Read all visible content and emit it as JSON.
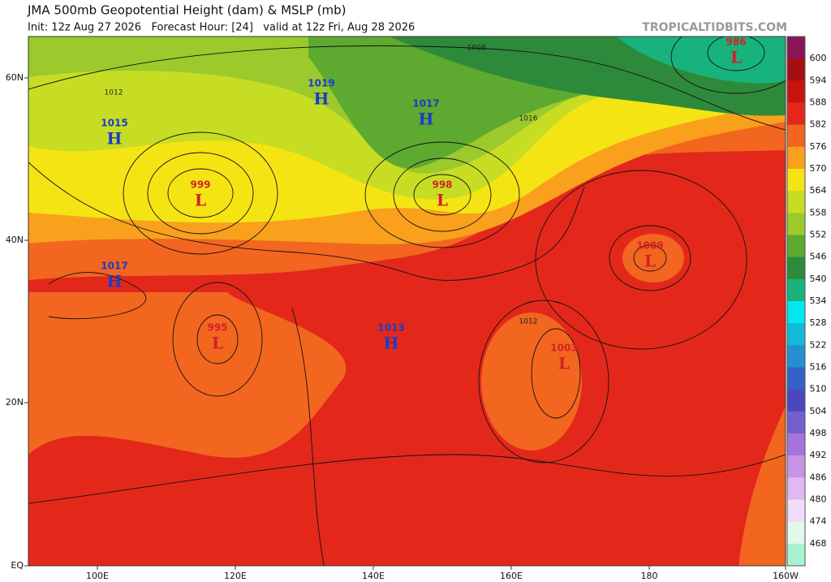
{
  "header": {
    "title": "JMA 500mb Geopotential Height (dam) & MSLP (mb)",
    "subtitle": "Init: 12z Aug 27 2026   Forecast Hour: [24]   valid at 12z Fri, Aug 28 2026",
    "source": "TROPICALTIDBITS.COM"
  },
  "map": {
    "lat_labels": [
      "60N",
      "40N",
      "20N",
      "EQ"
    ],
    "lon_labels": [
      "100E",
      "120E",
      "140E",
      "160E",
      "180",
      "160W"
    ],
    "pressure_centers": [
      {
        "symbol": "H",
        "value": "1015"
      },
      {
        "symbol": "H",
        "value": "1019"
      },
      {
        "symbol": "H",
        "value": "1017"
      },
      {
        "symbol": "L",
        "value": "999"
      },
      {
        "symbol": "L",
        "value": "998"
      },
      {
        "symbol": "L",
        "value": "986"
      },
      {
        "symbol": "H",
        "value": "1017"
      },
      {
        "symbol": "L",
        "value": "1009"
      },
      {
        "symbol": "L",
        "value": "995"
      },
      {
        "symbol": "H",
        "value": "1013"
      },
      {
        "symbol": "L",
        "value": "1003"
      }
    ],
    "contour_labels": [
      "1012",
      "1008",
      "1016",
      "1012"
    ]
  },
  "colorbar": {
    "labels": [
      600,
      594,
      588,
      582,
      576,
      570,
      564,
      558,
      552,
      546,
      540,
      534,
      528,
      522,
      516,
      510,
      504,
      498,
      492,
      486,
      480,
      474,
      468
    ],
    "colors": [
      "#8a1458",
      "#a50f12",
      "#c8140f",
      "#e3281b",
      "#f2661f",
      "#f9a01d",
      "#f5e414",
      "#c7dd24",
      "#9cc92b",
      "#5ea92f",
      "#2e8a3b",
      "#18b27c",
      "#00e8ec",
      "#14b8d8",
      "#2590d0",
      "#3462c8",
      "#4a48bf",
      "#7560cb",
      "#a474db",
      "#c994e4",
      "#e3b8f2",
      "#f2dcf8",
      "#e2f8ea",
      "#a8f2cf"
    ]
  }
}
